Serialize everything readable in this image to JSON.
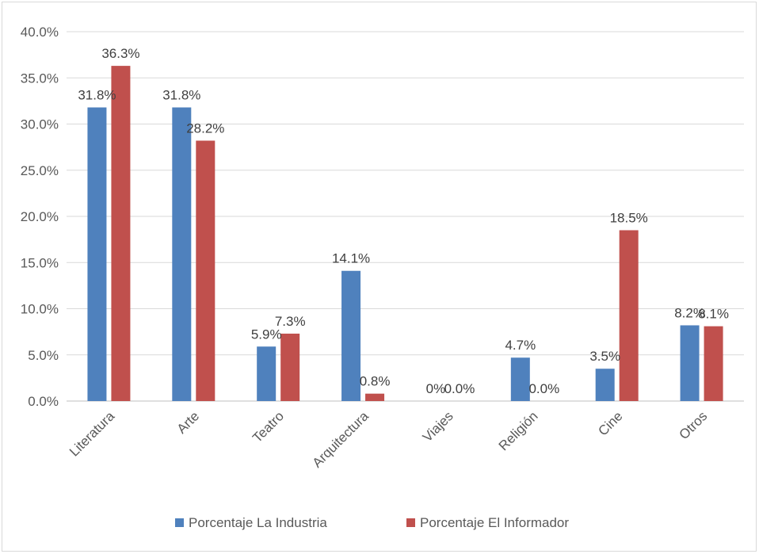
{
  "chart_data": {
    "type": "bar",
    "categories": [
      "Literatura",
      "Arte",
      "Teatro",
      "Arquitectura",
      "Viajes",
      "Religión",
      "Cine",
      "Otros"
    ],
    "series": [
      {
        "name": "Porcentaje La Industria",
        "color": "#4f81bd",
        "values": [
          31.8,
          31.8,
          5.9,
          14.1,
          0,
          4.7,
          3.5,
          8.2
        ],
        "labels": [
          "31.8%",
          "31.8%",
          "5.9%",
          "14.1%",
          "0%",
          "4.7%",
          "3.5%",
          "8.2%"
        ]
      },
      {
        "name": "Porcentaje El Informador",
        "color": "#c0504d",
        "values": [
          36.3,
          28.2,
          7.3,
          0.8,
          0.0,
          0.0,
          18.5,
          8.1
        ],
        "labels": [
          "36.3%",
          "28.2%",
          "7.3%",
          "0.8%",
          "0.0%",
          "0.0%",
          "18.5%",
          "8.1%"
        ]
      }
    ],
    "y_ticks": [
      "0.0%",
      "5.0%",
      "10.0%",
      "15.0%",
      "20.0%",
      "25.0%",
      "30.0%",
      "35.0%",
      "40.0%"
    ],
    "ylim": [
      0,
      40
    ],
    "grid": true,
    "legend_position": "bottom"
  }
}
